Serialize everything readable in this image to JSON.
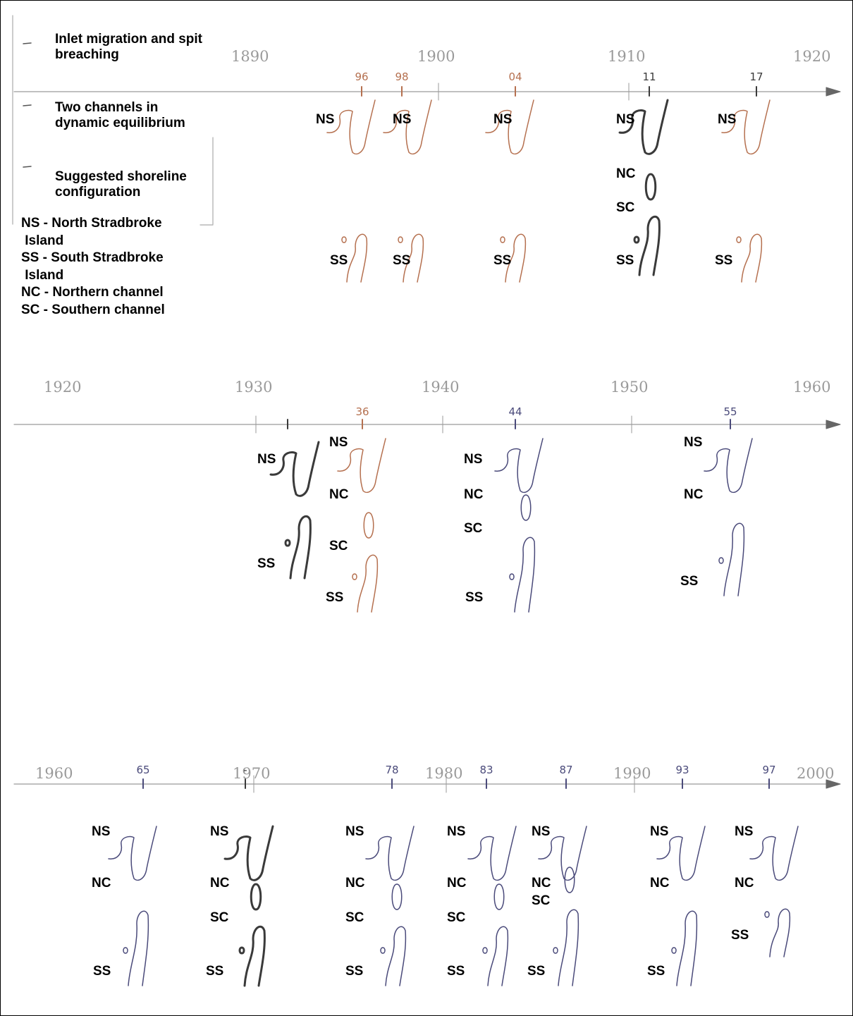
{
  "legend": {
    "items": [
      "Inlet migration and spit breaching",
      "Two channels in dynamic equilibrium",
      "Suggested shoreline configuration"
    ],
    "abbreviations": [
      "NS - North Stradbroke",
      " Island",
      "SS - South Stradbroke",
      " Island",
      "NC - Northern channel",
      "SC - Southern channel"
    ]
  },
  "colors": {
    "timeline": "#9a9a9a",
    "brown": "#b5704f",
    "black": "#3a3a3a",
    "blue": "#4a4a7a"
  },
  "rows": [
    {
      "decades": [
        "1890",
        "1900",
        "1910",
        "1920"
      ],
      "ticks": [
        {
          "label": "96",
          "color": "brown"
        },
        {
          "label": "98",
          "color": "brown"
        },
        {
          "label": "04",
          "color": "brown"
        },
        {
          "label": "11",
          "color": "black"
        },
        {
          "label": "17",
          "color": "black"
        }
      ],
      "panels": [
        {
          "labels": [
            "NS",
            "SS"
          ],
          "color": "brown"
        },
        {
          "labels": [
            "NS",
            "SS"
          ],
          "color": "brown"
        },
        {
          "labels": [
            "NS",
            "SS"
          ],
          "color": "brown"
        },
        {
          "labels": [
            "NS",
            "NC",
            "SC",
            "SS"
          ],
          "color": "black"
        },
        {
          "labels": [
            "NS",
            "SS"
          ],
          "color": "brown"
        }
      ]
    },
    {
      "decades": [
        "1920",
        "1930",
        "1940",
        "1950",
        "1960"
      ],
      "ticks": [
        {
          "label": "",
          "color": "black"
        },
        {
          "label": "36",
          "color": "brown"
        },
        {
          "label": "44",
          "color": "blue"
        },
        {
          "label": "55",
          "color": "blue"
        }
      ],
      "panels": [
        {
          "labels": [
            "NS",
            "SS"
          ],
          "color": "black"
        },
        {
          "labels": [
            "NS",
            "NC",
            "SC",
            "SS"
          ],
          "color": "brown"
        },
        {
          "labels": [
            "NS",
            "NC",
            "SC",
            "SS"
          ],
          "color": "blue"
        },
        {
          "labels": [
            "NS",
            "NC",
            "SS"
          ],
          "color": "blue"
        }
      ]
    },
    {
      "decades": [
        "1960",
        "1970",
        "1980",
        "1990",
        "2000"
      ],
      "ticks": [
        {
          "label": "65",
          "color": "blue"
        },
        {
          "label": "-",
          "color": "black"
        },
        {
          "label": "78",
          "color": "blue"
        },
        {
          "label": "83",
          "color": "blue"
        },
        {
          "label": "87",
          "color": "blue"
        },
        {
          "label": "93",
          "color": "blue"
        },
        {
          "label": "97",
          "color": "blue"
        }
      ],
      "panels": [
        {
          "labels": [
            "NS",
            "NC",
            "SS"
          ],
          "color": "blue"
        },
        {
          "labels": [
            "NS",
            "NC",
            "SC",
            "SS"
          ],
          "color": "black"
        },
        {
          "labels": [
            "NS",
            "NC",
            "SC",
            "SS"
          ],
          "color": "blue"
        },
        {
          "labels": [
            "NS",
            "NC",
            "SC",
            "SS"
          ],
          "color": "blue"
        },
        {
          "labels": [
            "NS",
            "NC",
            "SC",
            "SS"
          ],
          "color": "blue"
        },
        {
          "labels": [
            "NS",
            "NC",
            "SS"
          ],
          "color": "blue"
        },
        {
          "labels": [
            "NS",
            "NC",
            "SS"
          ],
          "color": "blue"
        }
      ]
    }
  ]
}
